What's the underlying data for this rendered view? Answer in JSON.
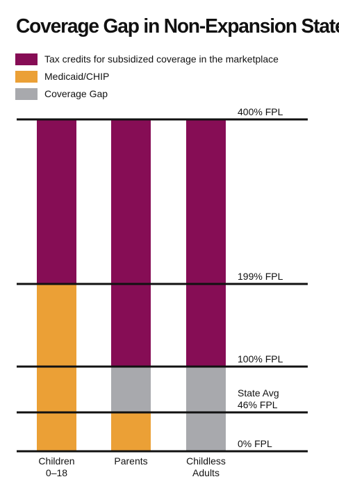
{
  "chart_data": {
    "type": "bar",
    "title": "Coverage Gap in Non-Expansion States",
    "categories": [
      "Children\n0–18",
      "Parents",
      "Childless\nAdults"
    ],
    "fpl_levels": [
      {
        "value": 400,
        "label": "400% FPL"
      },
      {
        "value": 199,
        "label": "199% FPL"
      },
      {
        "value": 100,
        "label": "100% FPL"
      },
      {
        "value": 46,
        "label": "State Avg\n46% FPL"
      },
      {
        "value": 0,
        "label": "0% FPL"
      }
    ],
    "series": [
      {
        "name": "Tax credits for subsidized coverage in the marketplace",
        "color": "#860d55",
        "segments": [
          [
            199,
            400
          ],
          [
            100,
            400
          ],
          [
            100,
            400
          ]
        ]
      },
      {
        "name": "Medicaid/CHIP",
        "color": "#eba036",
        "segments": [
          [
            0,
            199
          ],
          [
            0,
            46
          ],
          null
        ]
      },
      {
        "name": "Coverage Gap",
        "color": "#a8a9ad",
        "segments": [
          null,
          [
            46,
            100
          ],
          [
            0,
            100
          ]
        ]
      }
    ],
    "legend_position": "top-left",
    "grid": false
  }
}
